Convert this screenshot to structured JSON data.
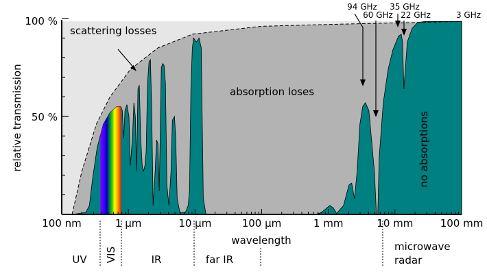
{
  "chart_data": {
    "type": "area",
    "xlabel": "wavelength",
    "ylabel": "relative transmission",
    "x_unit": "µm",
    "x_scale": "log",
    "xlim": [
      0.1,
      100000
    ],
    "ylim": [
      0,
      100
    ],
    "x_tick_labels": [
      "100 nm",
      "1 µm",
      "10 µm",
      "100 µm",
      "1 mm",
      "10 mm",
      "100 mm"
    ],
    "y_tick_labels": [
      "100 %",
      "50 %"
    ],
    "colors": {
      "transmission": "#008080",
      "absorption": "#b3b3b3",
      "scattering": "#e6e6e6"
    },
    "series": [
      {
        "name": "transmission",
        "points": [
          [
            0.143,
            0
          ],
          [
            0.23,
            1
          ],
          [
            0.26,
            4.5
          ],
          [
            0.29,
            18
          ],
          [
            0.34,
            34
          ],
          [
            0.42,
            46
          ],
          [
            0.53,
            52
          ],
          [
            0.67,
            55
          ],
          [
            0.77,
            55
          ],
          [
            0.81,
            53
          ],
          [
            0.85,
            39
          ],
          [
            0.89,
            53
          ],
          [
            0.95,
            56
          ],
          [
            1.02,
            50
          ],
          [
            1.07,
            25
          ],
          [
            1.15,
            39
          ],
          [
            1.21,
            57
          ],
          [
            1.27,
            50
          ],
          [
            1.33,
            22
          ],
          [
            1.39,
            64
          ],
          [
            1.46,
            66
          ],
          [
            1.53,
            39
          ],
          [
            1.61,
            25
          ],
          [
            1.69,
            22
          ],
          [
            1.77,
            25
          ],
          [
            1.85,
            32
          ],
          [
            1.94,
            67
          ],
          [
            2.04,
            78
          ],
          [
            2.14,
            79
          ],
          [
            2.24,
            53
          ],
          [
            2.35,
            4.5
          ],
          [
            2.52,
            22
          ],
          [
            2.65,
            38
          ],
          [
            2.77,
            36
          ],
          [
            2.91,
            12
          ],
          [
            3.12,
            75
          ],
          [
            3.28,
            77
          ],
          [
            3.43,
            76
          ],
          [
            3.6,
            67
          ],
          [
            3.78,
            15
          ],
          [
            4.06,
            4.5
          ],
          [
            4.36,
            22
          ],
          [
            4.57,
            48
          ],
          [
            4.91,
            50
          ],
          [
            5.14,
            39
          ],
          [
            5.4,
            8
          ],
          [
            5.93,
            1
          ],
          [
            7.17,
            1
          ],
          [
            7.88,
            4.5
          ],
          [
            8.27,
            12
          ],
          [
            8.67,
            64
          ],
          [
            9.1,
            85
          ],
          [
            9.53,
            90
          ],
          [
            10.5,
            88
          ],
          [
            11.5,
            90
          ],
          [
            12.4,
            85
          ],
          [
            13.3,
            8
          ],
          [
            14.6,
            0
          ],
          [
            652,
            0
          ],
          [
            789,
            1
          ],
          [
            1050,
            4.5
          ],
          [
            1180,
            3.5
          ],
          [
            1330,
            0.5
          ],
          [
            1690,
            4.5
          ],
          [
            2040,
            15
          ],
          [
            2240,
            16
          ],
          [
            2470,
            8
          ],
          [
            2710,
            22
          ],
          [
            2980,
            46
          ],
          [
            3280,
            55
          ],
          [
            3600,
            57
          ],
          [
            4060,
            53
          ],
          [
            4910,
            22
          ],
          [
            5270,
            0
          ],
          [
            5530,
            0
          ],
          [
            5790,
            29
          ],
          [
            6680,
            57
          ],
          [
            7880,
            74
          ],
          [
            9310,
            84
          ],
          [
            11300,
            91
          ],
          [
            12400,
            92
          ],
          [
            13000,
            88
          ],
          [
            13600,
            64
          ],
          [
            14300,
            74
          ],
          [
            15300,
            88
          ],
          [
            18100,
            95
          ],
          [
            21900,
            98
          ],
          [
            29100,
            98.5
          ],
          [
            100000,
            98.5
          ]
        ]
      },
      {
        "name": "scattering limit",
        "points": [
          [
            0.143,
            0
          ],
          [
            0.2,
            22
          ],
          [
            0.33,
            46
          ],
          [
            0.53,
            60
          ],
          [
            1.07,
            74
          ],
          [
            2.77,
            85
          ],
          [
            9.1,
            92
          ],
          [
            98,
            96
          ],
          [
            1050,
            97
          ],
          [
            100000,
            98.5
          ]
        ]
      }
    ],
    "visible_band_um": [
      0.38,
      0.77
    ],
    "annotations": {
      "scattering": "scattering losses",
      "absorption": "absorption loses",
      "none": "no absorptions",
      "f94": "94 GHz",
      "f60": "60 GHz",
      "f35": "35 GHz",
      "f22": "22 GHz",
      "f3": "3 GHz"
    },
    "regions": {
      "uv": "UV",
      "vis": "VIS",
      "ir": "IR",
      "far_ir": "far IR",
      "microwave1": "microwave",
      "microwave2": "radar"
    }
  }
}
